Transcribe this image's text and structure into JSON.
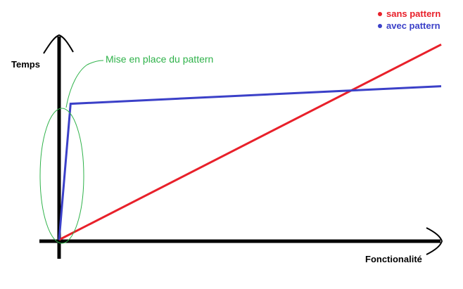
{
  "chart_data": {
    "type": "line",
    "title": "",
    "xlabel": "Fonctionalité",
    "ylabel": "Temps",
    "xlim": [
      0,
      100
    ],
    "ylim": [
      0,
      100
    ],
    "grid": false,
    "legend_position": "top-right",
    "series": [
      {
        "name": "sans pattern",
        "color": "#e8202a",
        "x": [
          0,
          100
        ],
        "y": [
          0,
          89
        ]
      },
      {
        "name": "avec pattern",
        "color": "#3b40c8",
        "x": [
          0,
          3,
          100
        ],
        "y": [
          0,
          62,
          70
        ]
      }
    ],
    "annotations": [
      {
        "text": "Mise en place du pattern",
        "color": "#2fb24a",
        "shape": "ellipse"
      }
    ]
  }
}
